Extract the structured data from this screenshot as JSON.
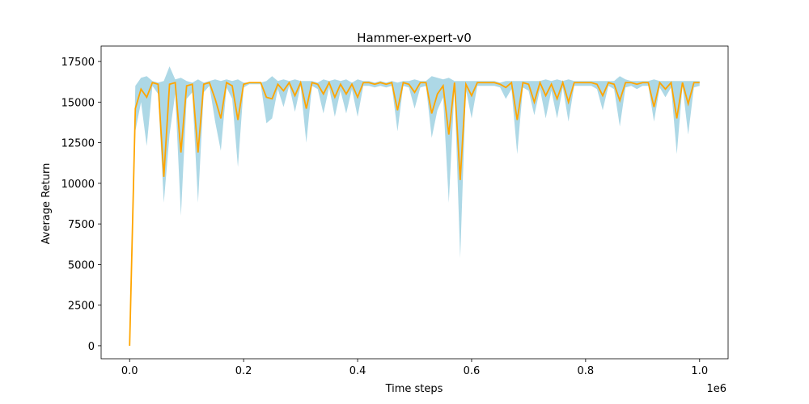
{
  "chart_data": {
    "type": "line",
    "title": "Hammer-expert-v0",
    "x_label": "Time steps",
    "y_label": "Average Return",
    "x_offset_label": "1e6",
    "x": [
      0,
      10000,
      20000,
      30000,
      40000,
      50000,
      60000,
      70000,
      80000,
      90000,
      100000,
      110000,
      120000,
      130000,
      140000,
      150000,
      160000,
      170000,
      180000,
      190000,
      200000,
      210000,
      220000,
      230000,
      240000,
      250000,
      260000,
      270000,
      280000,
      290000,
      300000,
      310000,
      320000,
      330000,
      340000,
      350000,
      360000,
      370000,
      380000,
      390000,
      400000,
      410000,
      420000,
      430000,
      440000,
      450000,
      460000,
      470000,
      480000,
      490000,
      500000,
      510000,
      520000,
      530000,
      540000,
      550000,
      560000,
      570000,
      580000,
      590000,
      600000,
      610000,
      620000,
      630000,
      640000,
      650000,
      660000,
      670000,
      680000,
      690000,
      700000,
      710000,
      720000,
      730000,
      740000,
      750000,
      760000,
      770000,
      780000,
      790000,
      800000,
      810000,
      820000,
      830000,
      840000,
      850000,
      860000,
      870000,
      880000,
      890000,
      900000,
      910000,
      920000,
      930000,
      940000,
      950000,
      960000,
      970000,
      980000,
      990000,
      1000000
    ],
    "values": [
      0,
      14600,
      15800,
      15300,
      16200,
      16100,
      10400,
      16100,
      16200,
      11900,
      16000,
      16100,
      11900,
      16100,
      16200,
      15200,
      14000,
      16200,
      16000,
      13900,
      16100,
      16200,
      16200,
      16200,
      15300,
      15200,
      16100,
      15700,
      16200,
      15400,
      16200,
      14600,
      16200,
      16100,
      15500,
      16200,
      15300,
      16100,
      15500,
      16100,
      15300,
      16200,
      16200,
      16100,
      16200,
      16100,
      16200,
      14500,
      16200,
      16100,
      15600,
      16200,
      16200,
      14300,
      15500,
      16000,
      13000,
      16200,
      10200,
      16100,
      15400,
      16200,
      16200,
      16200,
      16200,
      16100,
      15900,
      16200,
      13900,
      16200,
      16100,
      15000,
      16200,
      15400,
      16100,
      15200,
      16200,
      15000,
      16200,
      16200,
      16200,
      16200,
      16100,
      15400,
      16200,
      16100,
      15100,
      16200,
      16200,
      16100,
      16200,
      16200,
      14700,
      16200,
      15800,
      16200,
      14000,
      16200,
      14900,
      16200,
      16200
    ],
    "color": "#ffa500",
    "band": {
      "color": "#add8e6",
      "upper": [
        0,
        16000,
        16500,
        16600,
        16300,
        16200,
        16300,
        17200,
        16400,
        16500,
        16300,
        16200,
        16400,
        16200,
        16300,
        16400,
        16300,
        16400,
        16300,
        16400,
        16200,
        16200,
        16200,
        16200,
        16300,
        16600,
        16300,
        16400,
        16300,
        16400,
        16300,
        16300,
        16300,
        16200,
        16400,
        16300,
        16400,
        16300,
        16400,
        16200,
        16400,
        16300,
        16300,
        16200,
        16300,
        16200,
        16300,
        16200,
        16300,
        16300,
        16400,
        16300,
        16300,
        16600,
        16500,
        16400,
        16500,
        16300,
        16300,
        16300,
        16300,
        16300,
        16300,
        16300,
        16300,
        16200,
        16300,
        16300,
        16300,
        16300,
        16300,
        16300,
        16300,
        16400,
        16300,
        16400,
        16300,
        16400,
        16300,
        16300,
        16300,
        16300,
        16300,
        16300,
        16300,
        16300,
        16600,
        16400,
        16300,
        16300,
        16300,
        16300,
        16400,
        16300,
        16300,
        16300,
        16300,
        16300,
        16300,
        16300,
        16300
      ],
      "lower": [
        0,
        13200,
        15000,
        12300,
        16000,
        15500,
        8800,
        13000,
        15500,
        8000,
        15200,
        15600,
        8800,
        15600,
        16000,
        13800,
        12000,
        15900,
        15200,
        11000,
        15900,
        16100,
        16100,
        16100,
        13700,
        14000,
        15800,
        14700,
        16000,
        14400,
        16000,
        12500,
        16000,
        15800,
        14300,
        15900,
        14100,
        15700,
        14300,
        15800,
        14100,
        16000,
        16000,
        15900,
        16000,
        15900,
        16000,
        13200,
        16000,
        15900,
        14600,
        15900,
        16000,
        12800,
        14500,
        15300,
        8800,
        15900,
        5400,
        15800,
        14000,
        16000,
        16000,
        16000,
        16000,
        15900,
        15200,
        15800,
        11800,
        15900,
        15700,
        14200,
        15800,
        14000,
        15700,
        14000,
        15900,
        13800,
        16000,
        16000,
        16000,
        16000,
        15800,
        14500,
        16000,
        15800,
        13500,
        15900,
        16000,
        15800,
        16000,
        16000,
        13800,
        15900,
        15300,
        15900,
        11800,
        16000,
        13000,
        15900,
        16000
      ]
    },
    "xlim": [
      -50000,
      1050000
    ],
    "ylim": [
      -800,
      18450
    ],
    "xticks": [
      {
        "value": 0,
        "label": "0.0"
      },
      {
        "value": 200000,
        "label": "0.2"
      },
      {
        "value": 400000,
        "label": "0.4"
      },
      {
        "value": 600000,
        "label": "0.6"
      },
      {
        "value": 800000,
        "label": "0.8"
      },
      {
        "value": 1000000,
        "label": "1.0"
      }
    ],
    "yticks": [
      0,
      2500,
      5000,
      7500,
      10000,
      12500,
      15000,
      17500
    ]
  }
}
